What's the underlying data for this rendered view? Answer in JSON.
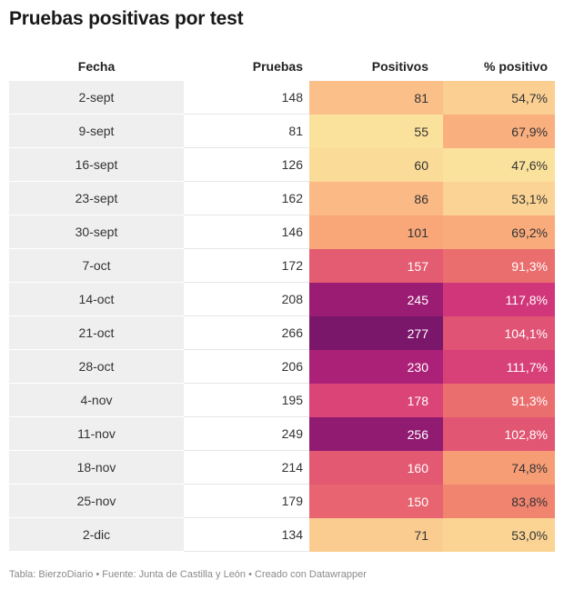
{
  "title": "Pruebas positivas por test",
  "footer": "Tabla: BierzoDiario • Fuente: Junta de Castilla y León • Creado con Datawrapper",
  "headers": {
    "fecha": "Fecha",
    "pruebas": "Pruebas",
    "positivos": "Positivos",
    "pct": "% positivo"
  },
  "chart_data": {
    "type": "table",
    "title": "Pruebas positivas por test",
    "columns": [
      "Fecha",
      "Pruebas",
      "Positivos",
      "% positivo"
    ],
    "rows": [
      {
        "fecha": "2-sept",
        "pruebas": "148",
        "positivos": "81",
        "pct": "54,7%"
      },
      {
        "fecha": "9-sept",
        "pruebas": "81",
        "positivos": "55",
        "pct": "67,9%"
      },
      {
        "fecha": "16-sept",
        "pruebas": "126",
        "positivos": "60",
        "pct": "47,6%"
      },
      {
        "fecha": "23-sept",
        "pruebas": "162",
        "positivos": "86",
        "pct": "53,1%"
      },
      {
        "fecha": "30-sept",
        "pruebas": "146",
        "positivos": "101",
        "pct": "69,2%"
      },
      {
        "fecha": "7-oct",
        "pruebas": "172",
        "positivos": "157",
        "pct": "91,3%"
      },
      {
        "fecha": "14-oct",
        "pruebas": "208",
        "positivos": "245",
        "pct": "117,8%"
      },
      {
        "fecha": "21-oct",
        "pruebas": "266",
        "positivos": "277",
        "pct": "104,1%"
      },
      {
        "fecha": "28-oct",
        "pruebas": "206",
        "positivos": "230",
        "pct": "111,7%"
      },
      {
        "fecha": "4-nov",
        "pruebas": "195",
        "positivos": "178",
        "pct": "91,3%"
      },
      {
        "fecha": "11-nov",
        "pruebas": "249",
        "positivos": "256",
        "pct": "102,8%"
      },
      {
        "fecha": "18-nov",
        "pruebas": "214",
        "positivos": "160",
        "pct": "74,8%"
      },
      {
        "fecha": "25-nov",
        "pruebas": "179",
        "positivos": "150",
        "pct": "83,8%"
      },
      {
        "fecha": "2-dic",
        "pruebas": "134",
        "positivos": "71",
        "pct": "53,0%"
      }
    ],
    "heatmap_columns": [
      "Positivos",
      "% positivo"
    ],
    "color_scale": [
      "#fbe29c",
      "#fbc48c",
      "#f9a97a",
      "#f38a6f",
      "#ea6a6e",
      "#e05374",
      "#d4387a",
      "#c72c7c",
      "#a81f77",
      "#911b70",
      "#7a176a"
    ]
  }
}
